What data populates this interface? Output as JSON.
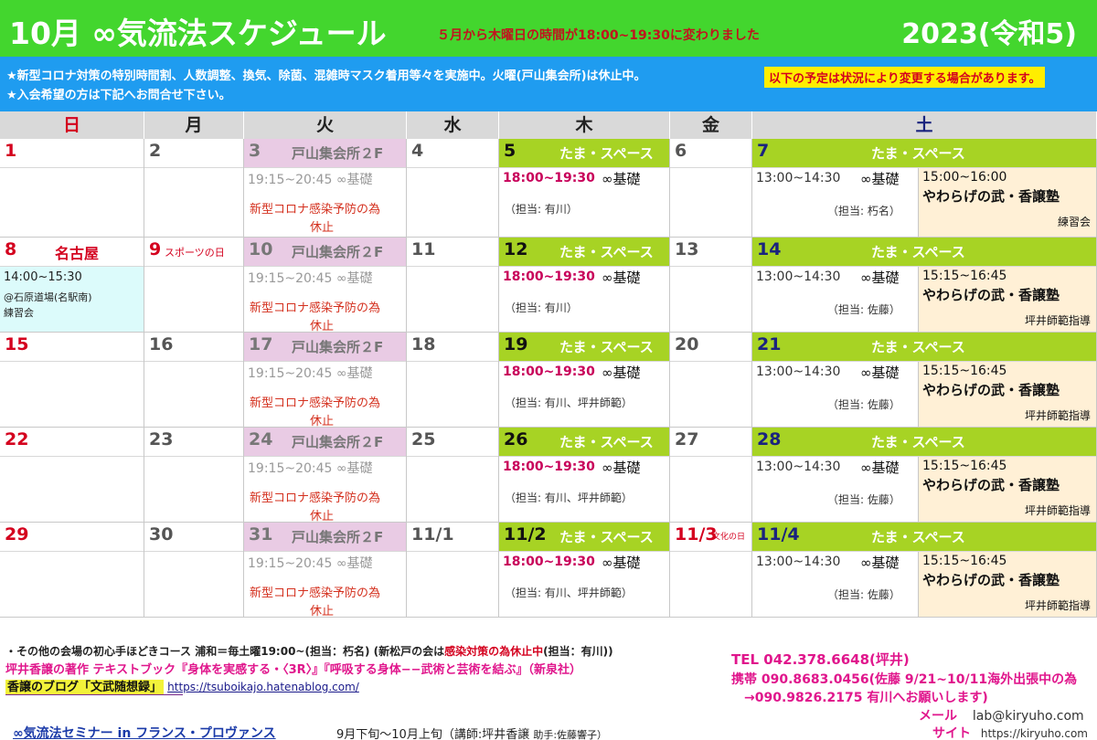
{
  "header": {
    "title": "10月 ∞気流法スケジュール",
    "subtitle": "５月から木曜日の時間が18:00~19:30に変わりました",
    "year": "2023(令和5)"
  },
  "notice": {
    "line1": "★新型コロナ対策の特別時間割、人数調整、換気、除菌、混雑時マスク着用等々を実施中。火曜(戸山集会所)は休止中。",
    "line2": "★入会希望の方は下記へお問合せ下さい。",
    "warning": "以下の予定は状況により変更する場合があります。"
  },
  "days": [
    "日",
    "月",
    "火",
    "水",
    "木",
    "金",
    "土"
  ],
  "tue": {
    "venue": "戸山集会所２F",
    "time": "19:15~20:45 ∞基礎",
    "cancel1": "新型コロナ感染予防の為",
    "cancel2": "休止"
  },
  "thu": {
    "venue": "たま・スペース",
    "time": "18:00~19:30",
    "course": "∞基礎"
  },
  "sat": {
    "venue": "たま・スペース",
    "time": "13:00~14:30",
    "course": "∞基礎",
    "yawara": "やわらげの武・香譲塾"
  },
  "weeks": [
    {
      "sun": "1",
      "mon": "2",
      "tue": "3",
      "wed": "4",
      "thu": "5",
      "fri": "6",
      "sat": "7",
      "thu_staff": "（担当: 有川）",
      "sat_staff": "（担当: 朽名）",
      "sat_time2": "15:00~16:00",
      "sat_note": "練習会"
    },
    {
      "sun": "8",
      "mon": "9",
      "tue": "10",
      "wed": "11",
      "thu": "12",
      "fri": "13",
      "sat": "14",
      "thu_staff": "（担当: 有川）",
      "sat_staff": "（担当: 佐藤）",
      "sat_time2": "15:15~16:45",
      "sat_note": "坪井師範指導"
    },
    {
      "sun": "15",
      "mon": "16",
      "tue": "17",
      "wed": "18",
      "thu": "19",
      "fri": "20",
      "sat": "21",
      "thu_staff": "（担当: 有川、坪井師範）",
      "sat_staff": "（担当: 佐藤）",
      "sat_time2": "15:15~16:45",
      "sat_note": "坪井師範指導"
    },
    {
      "sun": "22",
      "mon": "23",
      "tue": "24",
      "wed": "25",
      "thu": "26",
      "fri": "27",
      "sat": "28",
      "thu_staff": "（担当: 有川、坪井師範）",
      "sat_staff": "（担当: 佐藤）",
      "sat_time2": "15:15~16:45",
      "sat_note": "坪井師範指導"
    },
    {
      "sun": "29",
      "mon": "30",
      "tue": "31",
      "wed": "11/1",
      "thu": "11/2",
      "fri": "11/3",
      "sat": "11/4",
      "thu_staff": "（担当: 有川、坪井師範）",
      "sat_staff": "（担当: 佐藤）",
      "sat_time2": "15:15~16:45",
      "sat_note": "坪井師範指導"
    }
  ],
  "special": {
    "nagoya": "名古屋",
    "nagoya_time": "14:00~15:30",
    "nagoya_place": "@石原道場(名駅南)",
    "nagoya_note": "練習会",
    "sports_day": "スポーツの日",
    "culture_day": "文化の日"
  },
  "footer": {
    "line1a": "・その他の会場の初心手ほどきコース 浦和＝毎土曜19:00~(担当：朽名)",
    "line1b": "(新松戸の会は",
    "line1c": "感染対策の為休止中",
    "line1d": "(担当：有川))",
    "line2": "坪井香譲の著作 テキストブック『身体を実感する・〈3R〉』『呼吸する身体−−武術と芸術を結ぶ』（新泉社）",
    "blog": "香譲のブログ「文武随想録」",
    "blog_url": "https://tsuboikajo.hatenablog.com/",
    "seminar": "∞気流法セミナー in フランス・プロヴァンス",
    "seminar_detail": "9月下旬〜10月上旬（講師:坪井香譲",
    "seminar_assist": "助手:佐藤響子）",
    "tel": "TEL 042.378.6648(坪井)",
    "mobile": "携帯 090.8683.0456(佐藤 9/21~10/11海外出張中の為",
    "mobile2": "→090.9826.2175 有川へお願いします)",
    "mail_label": "メール",
    "mail": "lab@kiryuho.com",
    "site_label": "サイト",
    "site": "https://kiryuho.com"
  }
}
